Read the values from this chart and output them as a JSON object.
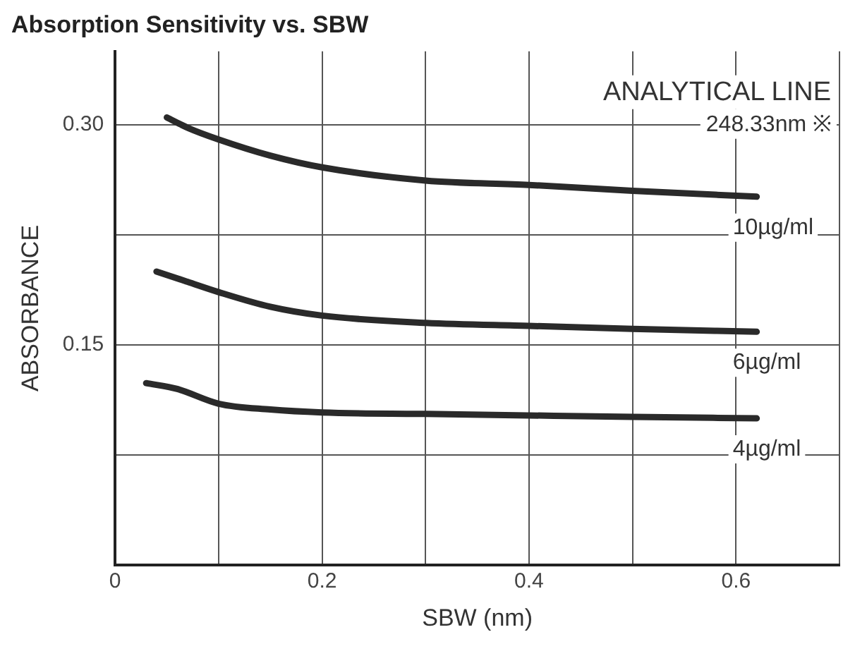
{
  "chart_data": {
    "type": "line",
    "title": "Absorption Sensitivity vs. SBW",
    "xlabel": "SBW (nm)",
    "ylabel": "ABSORBANCE",
    "annotations": [
      "ANALYTICAL LINE",
      "248.33nm ※"
    ],
    "xlim": [
      0,
      0.7
    ],
    "xticks": [
      0,
      {
        "value": 0.1,
        "label": null
      },
      0.2,
      {
        "value": 0.3,
        "label": null
      },
      0.4,
      {
        "value": 0.5,
        "label": null
      },
      0.6,
      {
        "value": 0.7,
        "label": null
      }
    ],
    "ylim": [
      0,
      0.35
    ],
    "yticks": [
      {
        "value": 0,
        "label": null
      },
      {
        "value": 0.075,
        "label": null
      },
      {
        "value": 0.15,
        "label": "0.15"
      },
      {
        "value": 0.225,
        "label": null
      },
      {
        "value": 0.3,
        "label": "0.30"
      }
    ],
    "grid": true,
    "legend": false,
    "marker": "none",
    "line_style": "solid",
    "series": [
      {
        "name": "10µg/ml",
        "color": "#2a2a2a",
        "x": [
          0.05,
          0.07,
          0.1,
          0.15,
          0.2,
          0.3,
          0.4,
          0.5,
          0.62
        ],
        "values": [
          0.305,
          0.298,
          0.29,
          0.279,
          0.271,
          0.262,
          0.259,
          0.255,
          0.251
        ]
      },
      {
        "name": "6µg/ml",
        "color": "#2a2a2a",
        "x": [
          0.04,
          0.07,
          0.1,
          0.15,
          0.2,
          0.3,
          0.4,
          0.5,
          0.62
        ],
        "values": [
          0.2,
          0.193,
          0.186,
          0.176,
          0.17,
          0.165,
          0.163,
          0.161,
          0.159
        ]
      },
      {
        "name": "4µg/ml",
        "color": "#2a2a2a",
        "x": [
          0.03,
          0.06,
          0.1,
          0.15,
          0.2,
          0.3,
          0.4,
          0.5,
          0.62
        ],
        "values": [
          0.124,
          0.12,
          0.11,
          0.106,
          0.104,
          0.103,
          0.102,
          0.101,
          0.1
        ]
      }
    ]
  }
}
